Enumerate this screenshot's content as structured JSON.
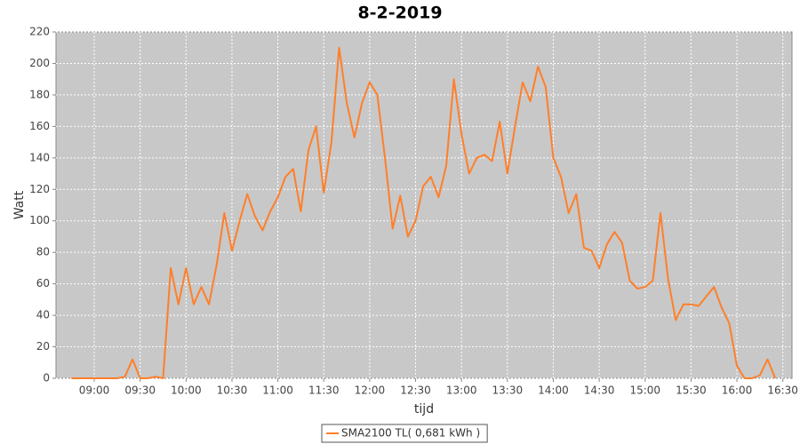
{
  "chart_data": {
    "type": "line",
    "title": "8-2-2019",
    "x_label": "tijd",
    "y_label": "Watt",
    "x": [
      "08:45",
      "08:50",
      "08:55",
      "09:00",
      "09:05",
      "09:10",
      "09:15",
      "09:20",
      "09:25",
      "09:30",
      "09:35",
      "09:40",
      "09:45",
      "09:50",
      "09:55",
      "10:00",
      "10:05",
      "10:10",
      "10:15",
      "10:20",
      "10:25",
      "10:30",
      "10:35",
      "10:40",
      "10:45",
      "10:50",
      "10:55",
      "11:00",
      "11:05",
      "11:10",
      "11:15",
      "11:20",
      "11:25",
      "11:30",
      "11:35",
      "11:40",
      "11:45",
      "11:50",
      "11:55",
      "12:00",
      "12:05",
      "12:10",
      "12:15",
      "12:20",
      "12:25",
      "12:30",
      "12:35",
      "12:40",
      "12:45",
      "12:50",
      "12:55",
      "13:00",
      "13:05",
      "13:10",
      "13:15",
      "13:20",
      "13:25",
      "13:30",
      "13:35",
      "13:40",
      "13:45",
      "13:50",
      "13:55",
      "14:00",
      "14:05",
      "14:10",
      "14:15",
      "14:20",
      "14:25",
      "14:30",
      "14:35",
      "14:40",
      "14:45",
      "14:50",
      "14:55",
      "15:00",
      "15:05",
      "15:10",
      "15:15",
      "15:20",
      "15:25",
      "15:30",
      "15:35",
      "15:40",
      "15:45",
      "15:50",
      "15:55",
      "16:00",
      "16:05",
      "16:10",
      "16:15",
      "16:20",
      "16:25"
    ],
    "series": [
      {
        "name": "SMA2100 TL( 0,681 kWh )",
        "color": "#ff7f2a",
        "values": [
          0,
          0,
          0,
          0,
          0,
          0,
          0,
          1,
          12,
          0,
          0,
          1,
          0,
          70,
          47,
          70,
          47,
          58,
          47,
          72,
          105,
          81,
          100,
          117,
          103,
          94,
          106,
          115,
          128,
          133,
          106,
          145,
          160,
          118,
          150,
          210,
          175,
          153,
          175,
          188,
          180,
          140,
          95,
          116,
          90,
          100,
          122,
          128,
          115,
          135,
          190,
          155,
          130,
          140,
          142,
          138,
          163,
          130,
          160,
          188,
          176,
          198,
          185,
          140,
          128,
          105,
          117,
          83,
          81,
          70,
          85,
          93,
          86,
          62,
          57,
          58,
          62,
          105,
          63,
          37,
          47,
          47,
          46,
          52,
          58,
          45,
          35,
          8,
          0,
          0,
          2,
          12,
          0
        ]
      }
    ],
    "xlim": [
      "08:35",
      "16:36"
    ],
    "xticks": [
      "09:00",
      "09:30",
      "10:00",
      "10:30",
      "11:00",
      "11:30",
      "12:00",
      "12:30",
      "13:00",
      "13:30",
      "14:00",
      "14:30",
      "15:00",
      "15:30",
      "16:00",
      "16:30"
    ],
    "ylim": [
      0,
      220
    ],
    "yticks": [
      0,
      20,
      40,
      60,
      80,
      100,
      120,
      140,
      160,
      180,
      200,
      220
    ],
    "grid": true
  }
}
